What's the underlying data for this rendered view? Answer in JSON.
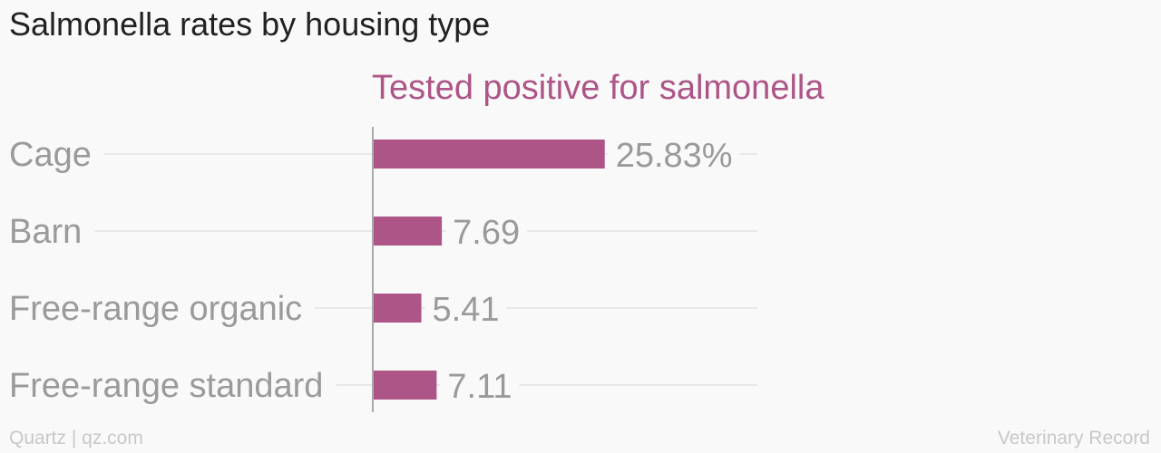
{
  "title": "Salmonella rates by housing type",
  "footer": {
    "credit": "Quartz | qz.com",
    "source": "Veterinary Record"
  },
  "colors": {
    "bar": "#ad5587",
    "category_label": "#9a9a9a",
    "value_label": "#9a9a9a",
    "grid": "#e8e8e8",
    "axis": "#aaaaaa"
  },
  "chart_data": {
    "type": "bar",
    "orientation": "horizontal",
    "categories": [
      "Cage",
      "Barn",
      "Free-range organic",
      "Free-range standard"
    ],
    "series": [
      {
        "name": "Tested positive for salmonella",
        "values": [
          25.83,
          7.69,
          5.41,
          7.11
        ],
        "value_labels": [
          "25.83%",
          "7.69",
          "5.41",
          "7.11"
        ]
      }
    ],
    "xlim": [
      0,
      42
    ],
    "grid": true
  }
}
